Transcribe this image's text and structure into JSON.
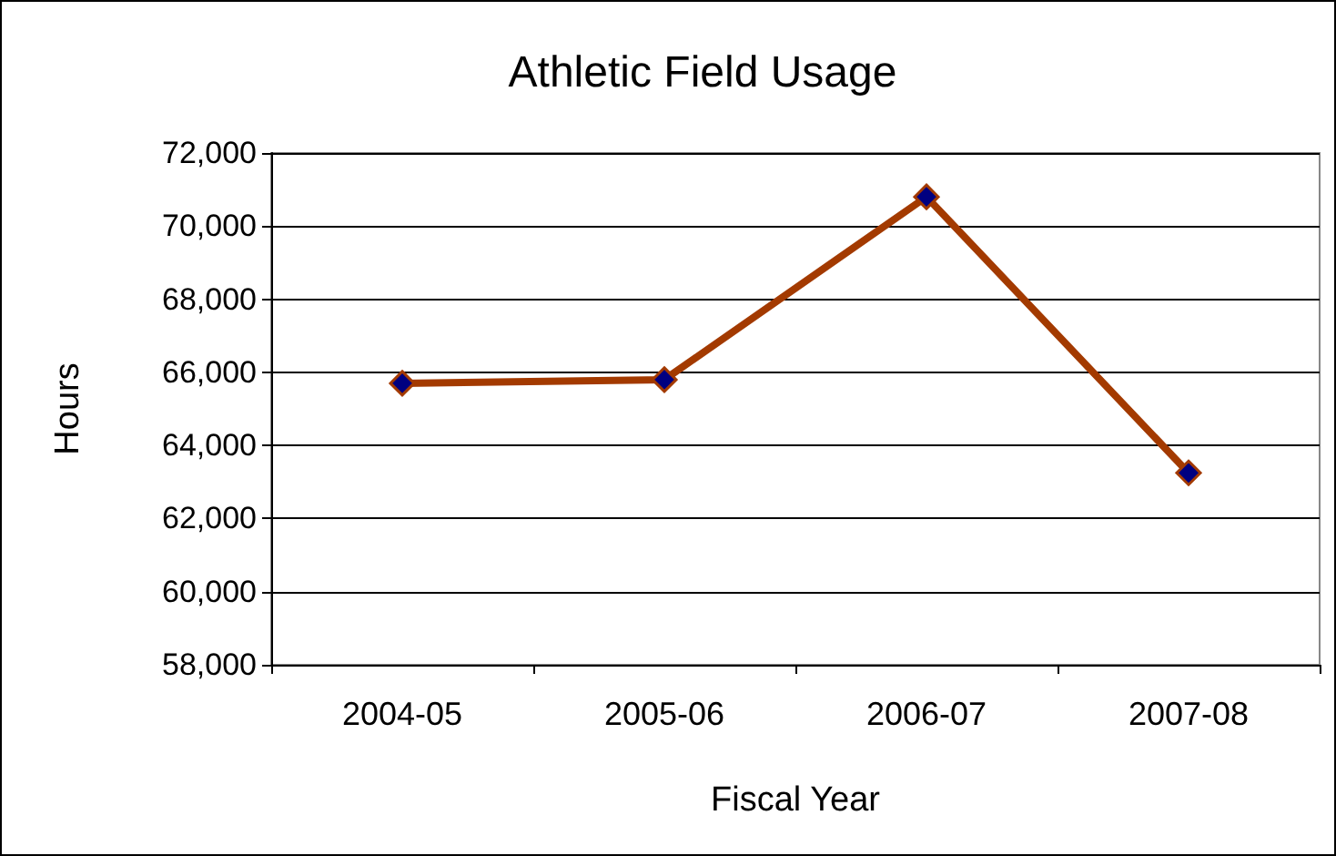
{
  "chart_data": {
    "type": "line",
    "title": "Athletic Field Usage",
    "xlabel": "Fiscal Year",
    "ylabel": "Hours",
    "categories": [
      "2004-05",
      "2005-06",
      "2006-07",
      "2007-08"
    ],
    "series": [
      {
        "color": "#a33a00",
        "values": [
          65700,
          65800,
          70800,
          63250
        ]
      }
    ],
    "ylim": [
      58000,
      72000
    ],
    "yticks": [
      {
        "value": 58000,
        "label": "58,000"
      },
      {
        "value": 60000,
        "label": "60,000"
      },
      {
        "value": 62000,
        "label": "62,000"
      },
      {
        "value": 64000,
        "label": "64,000"
      },
      {
        "value": 66000,
        "label": "66,000"
      },
      {
        "value": 68000,
        "label": "68,000"
      },
      {
        "value": 70000,
        "label": "70,000"
      },
      {
        "value": 72000,
        "label": "72,000"
      }
    ],
    "grid": "y",
    "marker": "diamond",
    "line_style": "solid"
  }
}
